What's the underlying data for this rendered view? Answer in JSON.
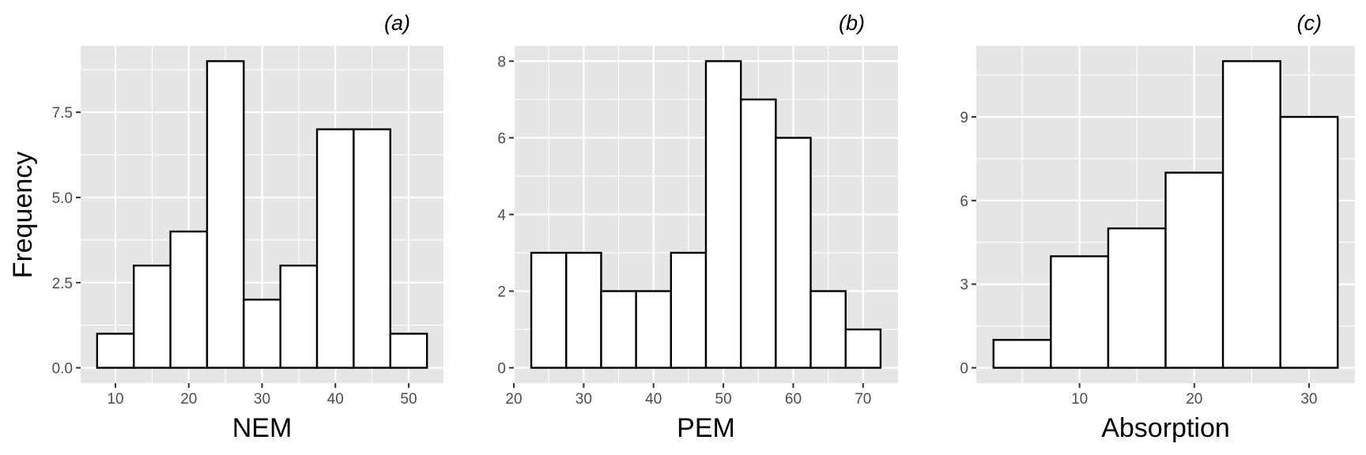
{
  "figure": {
    "ylabel": "Frequency"
  },
  "chart_data": [
    {
      "type": "bar",
      "panel_tag": "(a)",
      "xlabel": "NEM",
      "ylabel": "Frequency",
      "bin_width": 5,
      "bins": [
        {
          "start": 7.5,
          "end": 12.5,
          "value": 1
        },
        {
          "start": 12.5,
          "end": 17.5,
          "value": 3
        },
        {
          "start": 17.5,
          "end": 22.5,
          "value": 4
        },
        {
          "start": 22.5,
          "end": 27.5,
          "value": 9
        },
        {
          "start": 27.5,
          "end": 32.5,
          "value": 2
        },
        {
          "start": 32.5,
          "end": 37.5,
          "value": 3
        },
        {
          "start": 37.5,
          "end": 42.5,
          "value": 7
        },
        {
          "start": 42.5,
          "end": 47.5,
          "value": 7
        },
        {
          "start": 47.5,
          "end": 52.5,
          "value": 1
        }
      ],
      "xlim": [
        5.25,
        54.75
      ],
      "ylim": [
        -0.45,
        9.45
      ],
      "xticks": [
        10,
        20,
        30,
        40,
        50
      ],
      "xtick_labels": [
        "10",
        "20",
        "30",
        "40",
        "50"
      ],
      "xminor": [
        15,
        25,
        35,
        45
      ],
      "yticks": [
        0,
        2.5,
        5,
        7.5
      ],
      "ytick_labels": [
        "0.0",
        "2.5",
        "5.0",
        "7.5"
      ],
      "yminor": [
        1.25,
        3.75,
        6.25,
        8.75
      ],
      "grid": true,
      "legend": "none"
    },
    {
      "type": "bar",
      "panel_tag": "(b)",
      "xlabel": "PEM",
      "ylabel": "Frequency",
      "bin_width": 5,
      "bins": [
        {
          "start": 22.5,
          "end": 27.5,
          "value": 3
        },
        {
          "start": 27.5,
          "end": 32.5,
          "value": 3
        },
        {
          "start": 32.5,
          "end": 37.5,
          "value": 2
        },
        {
          "start": 37.5,
          "end": 42.5,
          "value": 2
        },
        {
          "start": 42.5,
          "end": 47.5,
          "value": 3
        },
        {
          "start": 47.5,
          "end": 52.5,
          "value": 8
        },
        {
          "start": 52.5,
          "end": 57.5,
          "value": 7
        },
        {
          "start": 57.5,
          "end": 62.5,
          "value": 6
        },
        {
          "start": 62.5,
          "end": 67.5,
          "value": 2
        },
        {
          "start": 67.5,
          "end": 72.5,
          "value": 1
        }
      ],
      "xlim": [
        20,
        75
      ],
      "ylim": [
        -0.4,
        8.4
      ],
      "xticks": [
        20,
        30,
        40,
        50,
        60,
        70
      ],
      "xtick_labels": [
        "20",
        "30",
        "40",
        "50",
        "60",
        "70"
      ],
      "xminor": [
        25,
        35,
        45,
        55,
        65
      ],
      "yticks": [
        0,
        2,
        4,
        6,
        8
      ],
      "ytick_labels": [
        "0",
        "2",
        "4",
        "6",
        "8"
      ],
      "yminor": [
        1,
        3,
        5,
        7
      ],
      "grid": true,
      "legend": "none"
    },
    {
      "type": "bar",
      "panel_tag": "(c)",
      "xlabel": "Absorption",
      "ylabel": "Frequency",
      "bin_width": 5,
      "bins": [
        {
          "start": 2.5,
          "end": 7.5,
          "value": 1
        },
        {
          "start": 7.5,
          "end": 12.5,
          "value": 4
        },
        {
          "start": 12.5,
          "end": 17.5,
          "value": 5
        },
        {
          "start": 17.5,
          "end": 22.5,
          "value": 7
        },
        {
          "start": 22.5,
          "end": 27.5,
          "value": 11
        },
        {
          "start": 27.5,
          "end": 32.5,
          "value": 9
        }
      ],
      "xlim": [
        1,
        34
      ],
      "ylim": [
        -0.55,
        11.55
      ],
      "xticks": [
        10,
        20,
        30
      ],
      "xtick_labels": [
        "10",
        "20",
        "30"
      ],
      "xminor": [
        5,
        15,
        25
      ],
      "yticks": [
        0,
        3,
        6,
        9
      ],
      "ytick_labels": [
        "0",
        "3",
        "6",
        "9"
      ],
      "yminor": [
        1.5,
        4.5,
        7.5,
        10.5
      ],
      "grid": true,
      "legend": "none"
    }
  ]
}
